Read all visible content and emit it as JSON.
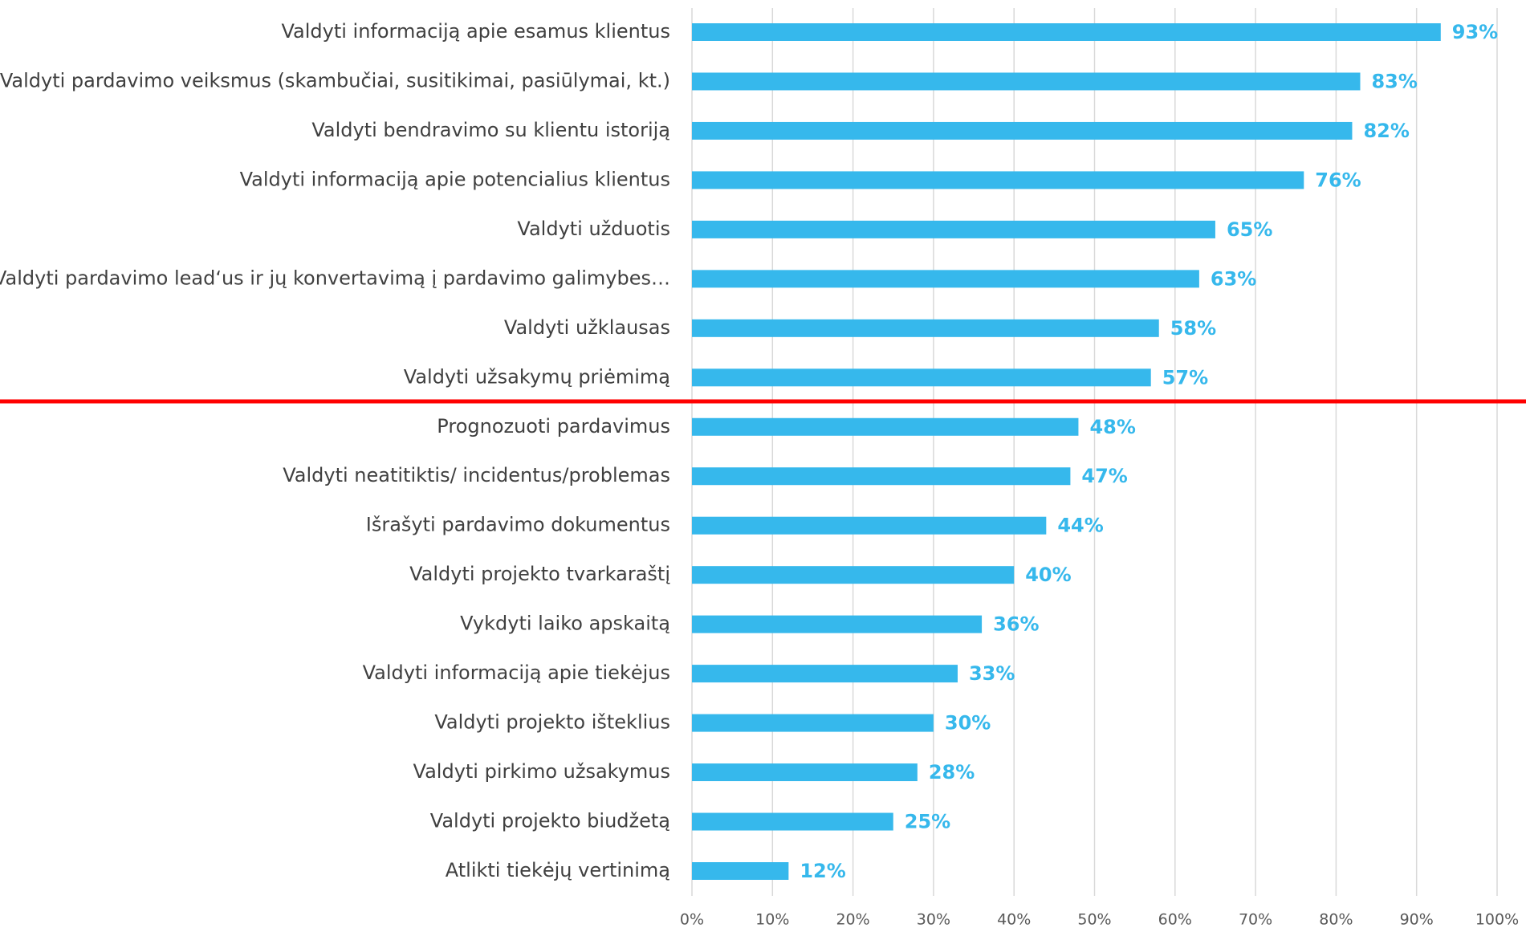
{
  "chart_data": {
    "type": "bar",
    "orientation": "horizontal",
    "categories": [
      "Valdyti informaciją apie esamus klientus",
      "Valdyti pardavimo veiksmus (skambučiai, susitikimai, pasiūlymai, kt.)",
      "Valdyti bendravimo su klientu istoriją",
      "Valdyti informaciją apie potencialius klientus",
      "Valdyti užduotis",
      "Valdyti pardavimo lead‘us ir jų konvertavimą į pardavimo galimybes…",
      "Valdyti užklausas",
      "Valdyti užsakymų priėmimą",
      "Prognozuoti pardavimus",
      "Valdyti neatitiktis/ incidentus/problemas",
      "Išrašyti pardavimo dokumentus",
      "Valdyti projekto tvarkaraštį",
      "Vykdyti laiko apskaitą",
      "Valdyti informaciją apie tiekėjus",
      "Valdyti projekto išteklius",
      "Valdyti pirkimo užsakymus",
      "Valdyti projekto biudžetą",
      "Atlikti tiekėjų vertinimą"
    ],
    "values": [
      93,
      83,
      82,
      76,
      65,
      63,
      58,
      57,
      48,
      47,
      44,
      40,
      36,
      33,
      30,
      28,
      25,
      12
    ],
    "value_labels": [
      "93%",
      "83%",
      "82%",
      "76%",
      "65%",
      "63%",
      "58%",
      "57%",
      "48%",
      "47%",
      "44%",
      "40%",
      "36%",
      "33%",
      "30%",
      "28%",
      "25%",
      "12%"
    ],
    "color": "#36b8ec",
    "xlim": [
      0,
      100
    ],
    "xticks": [
      {
        "value": 0,
        "label": "0%"
      },
      {
        "value": 10,
        "label": "10%"
      },
      {
        "value": 20,
        "label": "20%"
      },
      {
        "value": 30,
        "label": "30%"
      },
      {
        "value": 40,
        "label": "40%"
      },
      {
        "value": 50,
        "label": "50%"
      },
      {
        "value": 60,
        "label": "60%"
      },
      {
        "value": 70,
        "label": "70%"
      },
      {
        "value": 80,
        "label": "80%"
      },
      {
        "value": 90,
        "label": "90%"
      },
      {
        "value": 100,
        "label": "100%"
      }
    ],
    "grid": true
  }
}
